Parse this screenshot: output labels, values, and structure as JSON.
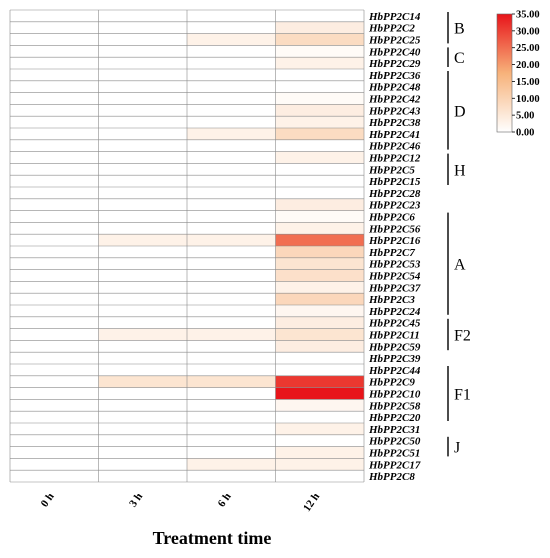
{
  "chart_data": {
    "type": "heatmap",
    "x_title": "Treatment time",
    "columns": [
      "0 h",
      "3 h",
      "6 h",
      "12 h"
    ],
    "rows": [
      "HbPP2C14",
      "HbPP2C2",
      "HbPP2C25",
      "HbPP2C40",
      "HbPP2C29",
      "HbPP2C36",
      "HbPP2C48",
      "HbPP2C42",
      "HbPP2C43",
      "HbPP2C38",
      "HbPP2C41",
      "HbPP2C46",
      "HbPP2C12",
      "HbPP2C5",
      "HbPP2C15",
      "HbPP2C28",
      "HbPP2C23",
      "HbPP2C6",
      "HbPP2C56",
      "HbPP2C16",
      "HbPP2C7",
      "HbPP2C53",
      "HbPP2C54",
      "HbPP2C37",
      "HbPP2C3",
      "HbPP2C24",
      "HbPP2C45",
      "HbPP2C11",
      "HbPP2C59",
      "HbPP2C39",
      "HbPP2C44",
      "HbPP2C9",
      "HbPP2C10",
      "HbPP2C58",
      "HbPP2C20",
      "HbPP2C31",
      "HbPP2C50",
      "HbPP2C51",
      "HbPP2C17",
      "HbPP2C8"
    ],
    "values": [
      [
        0,
        0,
        0,
        0
      ],
      [
        0,
        0,
        0,
        4
      ],
      [
        0,
        0,
        3,
        8
      ],
      [
        0,
        0,
        0,
        1
      ],
      [
        0,
        0,
        0,
        3
      ],
      [
        0,
        0,
        0,
        0
      ],
      [
        0,
        0,
        0,
        0
      ],
      [
        0,
        0,
        0,
        1
      ],
      [
        0,
        0,
        0,
        4
      ],
      [
        0,
        0,
        0,
        3
      ],
      [
        0,
        0,
        3,
        8
      ],
      [
        0,
        0,
        0,
        0
      ],
      [
        0,
        0,
        0,
        3
      ],
      [
        0,
        0,
        0,
        0
      ],
      [
        0,
        0,
        0,
        0
      ],
      [
        0,
        0,
        0,
        0
      ],
      [
        0,
        0,
        0,
        4
      ],
      [
        0,
        0,
        0,
        1
      ],
      [
        0,
        0,
        0,
        3
      ],
      [
        0,
        3,
        3,
        25
      ],
      [
        0,
        0,
        0,
        9
      ],
      [
        0,
        0,
        0,
        6
      ],
      [
        0,
        0,
        0,
        7
      ],
      [
        0,
        0,
        0,
        3
      ],
      [
        0,
        0,
        0,
        9
      ],
      [
        0,
        0,
        0,
        2
      ],
      [
        0,
        0,
        0,
        4
      ],
      [
        0,
        3,
        3,
        6
      ],
      [
        0,
        0,
        0,
        4
      ],
      [
        0,
        0,
        0,
        0
      ],
      [
        0,
        0,
        0,
        0
      ],
      [
        0,
        6,
        6,
        31
      ],
      [
        0,
        0,
        0,
        35
      ],
      [
        0,
        0,
        0,
        2
      ],
      [
        0,
        0,
        0,
        0
      ],
      [
        0,
        0,
        0,
        3
      ],
      [
        0,
        0,
        0,
        0
      ],
      [
        0,
        0,
        0,
        3
      ],
      [
        0,
        0,
        3,
        3
      ],
      [
        0,
        0,
        0,
        0
      ]
    ],
    "groups": [
      {
        "label": "B",
        "from": "HbPP2C14",
        "to": "HbPP2C25"
      },
      {
        "label": "C",
        "from": "HbPP2C40",
        "to": "HbPP2C29"
      },
      {
        "label": "D",
        "from": "HbPP2C36",
        "to": "HbPP2C46"
      },
      {
        "label": "H",
        "from": "HbPP2C12",
        "to": "HbPP2C15"
      },
      {
        "label": "A",
        "from": "HbPP2C6",
        "to": "HbPP2C24"
      },
      {
        "label": "F2",
        "from": "HbPP2C45",
        "to": "HbPP2C59"
      },
      {
        "label": "F1",
        "from": "HbPP2C44",
        "to": "HbPP2C20"
      },
      {
        "label": "J",
        "from": "HbPP2C50",
        "to": "HbPP2C51"
      }
    ],
    "colorbar": {
      "min": 0,
      "max": 35,
      "ticks": [
        "35.00",
        "30.00",
        "25.00",
        "20.00",
        "15.00",
        "10.00",
        "5.00",
        "0.00"
      ],
      "low_color": "#ffffff",
      "mid_color": "#f7b27a",
      "high_color": "#e8141a"
    }
  }
}
